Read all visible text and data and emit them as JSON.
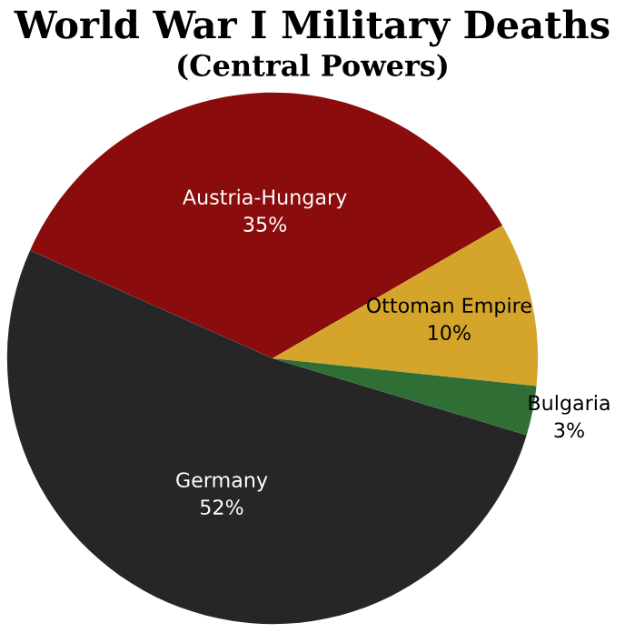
{
  "chart_data": {
    "type": "pie",
    "title": "World War I Military Deaths",
    "subtitle": "(Central Powers)",
    "categories": [
      "Austria-Hungary",
      "Ottoman Empire",
      "Bulgaria",
      "Germany"
    ],
    "values": [
      35,
      10,
      3,
      52
    ],
    "value_labels": [
      "35%",
      "10%",
      "3%",
      "52%"
    ],
    "colors": [
      "#8a0c0c",
      "#d4a52a",
      "#2f6e34",
      "#262626"
    ],
    "legend": false
  }
}
